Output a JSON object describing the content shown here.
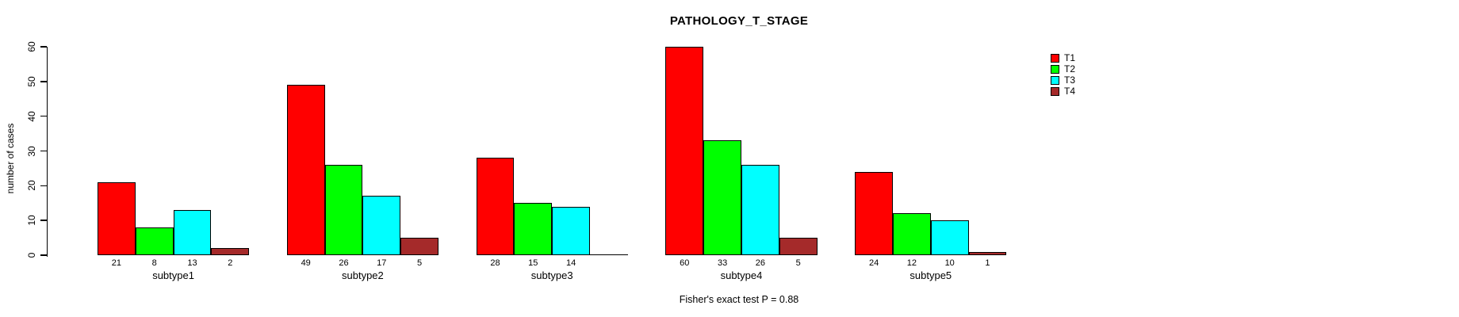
{
  "chart_data": {
    "type": "bar",
    "title": "PATHOLOGY_T_STAGE",
    "xlabel": "",
    "ylabel": "number of cases",
    "ylim": [
      0,
      60
    ],
    "yticks": [
      0,
      10,
      20,
      30,
      40,
      50,
      60
    ],
    "grid": false,
    "legend_position": "right",
    "categories": [
      "subtype1",
      "subtype2",
      "subtype3",
      "subtype4",
      "subtype5"
    ],
    "series": [
      {
        "name": "T1",
        "color": "#FF0000",
        "values": [
          21,
          49,
          28,
          60,
          24
        ]
      },
      {
        "name": "T2",
        "color": "#00FF00",
        "values": [
          8,
          26,
          15,
          33,
          12
        ]
      },
      {
        "name": "T3",
        "color": "#00FFFF",
        "values": [
          13,
          17,
          14,
          26,
          10
        ]
      },
      {
        "name": "T4",
        "color": "#A52A2A",
        "values": [
          2,
          5,
          0,
          5,
          1
        ]
      }
    ],
    "value_labels_shown": true,
    "zero_value_labels_hidden": true,
    "annotation": "Fisher's exact test P = 0.88"
  }
}
